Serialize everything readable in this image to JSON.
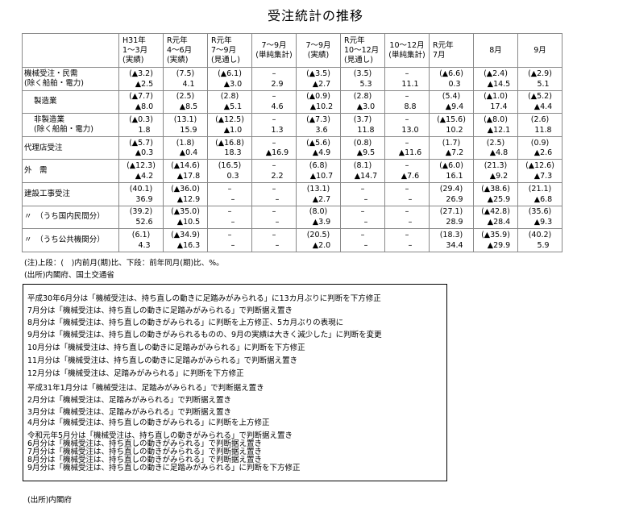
{
  "title": "受注統計の推移",
  "table": {
    "header": [
      [
        "H31年",
        "1～3月",
        "(実績)"
      ],
      [
        "R元年",
        "4～6月",
        "(実績)"
      ],
      [
        "R元年",
        "7～9月",
        "(見通し)"
      ],
      [
        "7～9月",
        "(単純集計)"
      ],
      [
        "7～9月",
        "(実績)"
      ],
      [
        "R元年",
        "10～12月",
        "(見通し)"
      ],
      [
        "10～12月",
        "(単純集計)"
      ],
      [
        "R元年",
        "7月"
      ],
      [
        "8月"
      ],
      [
        "9月"
      ]
    ],
    "rows": [
      {
        "label": [
          "機械受注・民需",
          "(除く船舶・電力)"
        ],
        "top": [
          "(▲3.2)",
          "(7.5)",
          "(▲6.1)",
          "–",
          "(▲3.5)",
          "(3.5)",
          "–",
          "(▲6.6)",
          "(▲2.4)",
          "(▲2.9)"
        ],
        "bottom": [
          "▲2.5",
          "4.1",
          "▲3.0",
          "2.9",
          "▲2.7",
          "5.3",
          "11.1",
          "0.3",
          "▲14.5",
          "5.1"
        ]
      },
      {
        "label": [
          "製造業"
        ],
        "top": [
          "(▲7.7)",
          "(2.5)",
          "(2.8)",
          "–",
          "(▲0.9)",
          "(2.8)",
          "–",
          "(5.4)",
          "(▲1.0)",
          "(▲5.2)"
        ],
        "bottom": [
          "▲8.0",
          "▲8.5",
          "▲5.1",
          "4.6",
          "▲10.2",
          "▲3.0",
          "8.8",
          "▲9.4",
          "17.4",
          "▲4.4"
        ]
      },
      {
        "label": [
          "非製造業",
          "(除く船舶・電力)"
        ],
        "top": [
          "(▲0.3)",
          "(13.1)",
          "(▲12.5)",
          "–",
          "(▲7.3)",
          "(3.7)",
          "–",
          "(▲15.6)",
          "(▲8.0)",
          "(2.6)"
        ],
        "bottom": [
          "1.8",
          "15.9",
          "▲1.0",
          "1.3",
          "3.6",
          "11.8",
          "13.0",
          "10.2",
          "▲12.1",
          "11.8"
        ]
      },
      {
        "label": [
          "代理店受注"
        ],
        "top": [
          "(▲5.7)",
          "(1.8)",
          "(▲16.8)",
          "–",
          "(▲5.6)",
          "(0.8)",
          "–",
          "(1.7)",
          "(2.5)",
          "(0.9)"
        ],
        "bottom": [
          "▲0.3",
          "▲0.4",
          "18.3",
          "▲16.9",
          "▲4.9",
          "▲9.5",
          "▲11.6",
          "▲7.2",
          "▲4.8",
          "▲2.6"
        ]
      },
      {
        "label": [
          "外　需"
        ],
        "top": [
          "(▲12.3)",
          "(▲14.6)",
          "(16.5)",
          "–",
          "(6.8)",
          "(8.1)",
          "–",
          "(▲6.0)",
          "(21.3)",
          "(▲12.6)"
        ],
        "bottom": [
          "▲4.2",
          "▲17.8",
          "0.3",
          "2.2",
          "▲10.7",
          "▲14.7",
          "▲7.6",
          "16.1",
          "▲9.2",
          "▲7.3"
        ]
      },
      {
        "label": [
          "建設工事受注"
        ],
        "top": [
          "(40.1)",
          "(▲36.0)",
          "–",
          "–",
          "(13.1)",
          "–",
          "–",
          "(29.4)",
          "(▲38.6)",
          "(21.1)"
        ],
        "bottom": [
          "36.9",
          "▲12.9",
          "–",
          "–",
          "▲2.7",
          "–",
          "–",
          "26.9",
          "▲25.9",
          "▲6.8"
        ]
      },
      {
        "label": [
          "〃　（うち国内民間分）"
        ],
        "top": [
          "(39.2)",
          "(▲35.0)",
          "–",
          "–",
          "(8.0)",
          "–",
          "–",
          "(27.1)",
          "(▲42.8)",
          "(35.6)"
        ],
        "bottom": [
          "52.6",
          "▲10.5",
          "–",
          "–",
          "▲3.9",
          "–",
          "–",
          "28.9",
          "▲28.4",
          "▲9.3"
        ]
      },
      {
        "label": [
          "〃　（うち公共機関分）"
        ],
        "top": [
          "(6.1)",
          "(▲34.9)",
          "–",
          "–",
          "(20.5)",
          "–",
          "–",
          "(18.3)",
          "(▲35.9)",
          "(40.2)"
        ],
        "bottom": [
          "4.3",
          "▲16.3",
          "–",
          "–",
          "▲2.0",
          "–",
          "–",
          "34.4",
          "▲29.9",
          "5.9"
        ]
      }
    ]
  },
  "notes": [
    "(注)上段：(　)内前月(期)比、下段：前年同月(期)比、%。",
    "(出所)内閣府、国土交通省"
  ],
  "box": [
    "平成30年6月分は「機械受注は、持ち直しの動きに足踏みがみられる」に13カ月ぶりに判断を下方修正",
    "7月分は「機械受注は、持ち直しの動きに足踏みがみられる」で判断据え置き",
    "8月分は「機械受注は、持ち直しの動きがみられる」に判断を上方修正、5カ月ぶりの表現に",
    "9月分は「機械受注は、持ち直しの動きがみられるものの、9月の実績は大きく減少した」に判断を変更",
    "10月分は「機械受注は、持ち直しの動きに足踏みがみられる」に判断を下方修正",
    "11月分は「機械受注は、持ち直しの動きに足踏みがみられる」で判断据え置き",
    "12月分は「機械受注は、足踏みがみられる」に判断を下方修正",
    "平成31年1月分は「機械受注は、足踏みがみられる」で判断据え置き",
    "2月分は「機械受注は、足踏みがみられる」で判断据え置き",
    "3月分は「機械受注は、足踏みがみられる」で判断据え置き",
    "4月分は「機械受注は、持ち直しの動きがみられる」に判断を上方修正",
    "令和元年5月分は「機械受注は、持ち直しの動きがみられる」で判断据え置き",
    "6月分は「機械受注は、持ち直しの動きがみられる」で判断据え置き",
    "7月分は「機械受注は、持ち直しの動きがみられる」で判断据え置き",
    "8月分は「機械受注は、持ち直しの動きがみられる」で判断据え置き",
    "9月分は「機械受注は、持ち直しの動きに足踏みがみられる」に判断を下方修正"
  ],
  "source": "(出所)内閣府"
}
